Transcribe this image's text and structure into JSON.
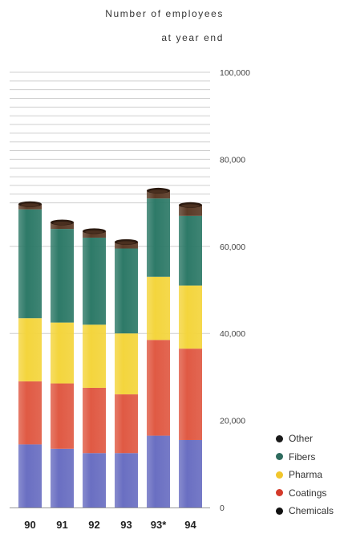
{
  "chart_data": {
    "type": "bar",
    "stacked": true,
    "title_lines": [
      "Number of employees",
      "at year end"
    ],
    "categories": [
      "90",
      "91",
      "92",
      "93",
      "93*",
      "94"
    ],
    "ylim": [
      0,
      100000
    ],
    "y_ticks": [
      0,
      20000,
      40000,
      60000,
      80000,
      100000
    ],
    "y_tick_labels": [
      "0",
      "20,000",
      "40,000",
      "60,000",
      "80,000",
      "100,000"
    ],
    "series": [
      {
        "name": "Chemicals",
        "color": "#6a6fc2",
        "values": [
          14500,
          13500,
          12500,
          12500,
          16500,
          15500
        ]
      },
      {
        "name": "Coatings",
        "color": "#e05a44",
        "values": [
          14500,
          15000,
          15000,
          13500,
          22000,
          21000
        ]
      },
      {
        "name": "Pharma",
        "color": "#f4d53d",
        "values": [
          14500,
          14000,
          14500,
          14000,
          14500,
          14500
        ]
      },
      {
        "name": "Fibers",
        "color": "#2e7a68",
        "values": [
          25000,
          21500,
          20000,
          19500,
          18000,
          16000
        ]
      },
      {
        "name": "Other",
        "color": "#5a3a26",
        "values": [
          1200,
          1500,
          1500,
          1500,
          1800,
          2500
        ]
      }
    ],
    "legend_position": "bottom-right",
    "grid": "horizontal lines above 80,000"
  }
}
